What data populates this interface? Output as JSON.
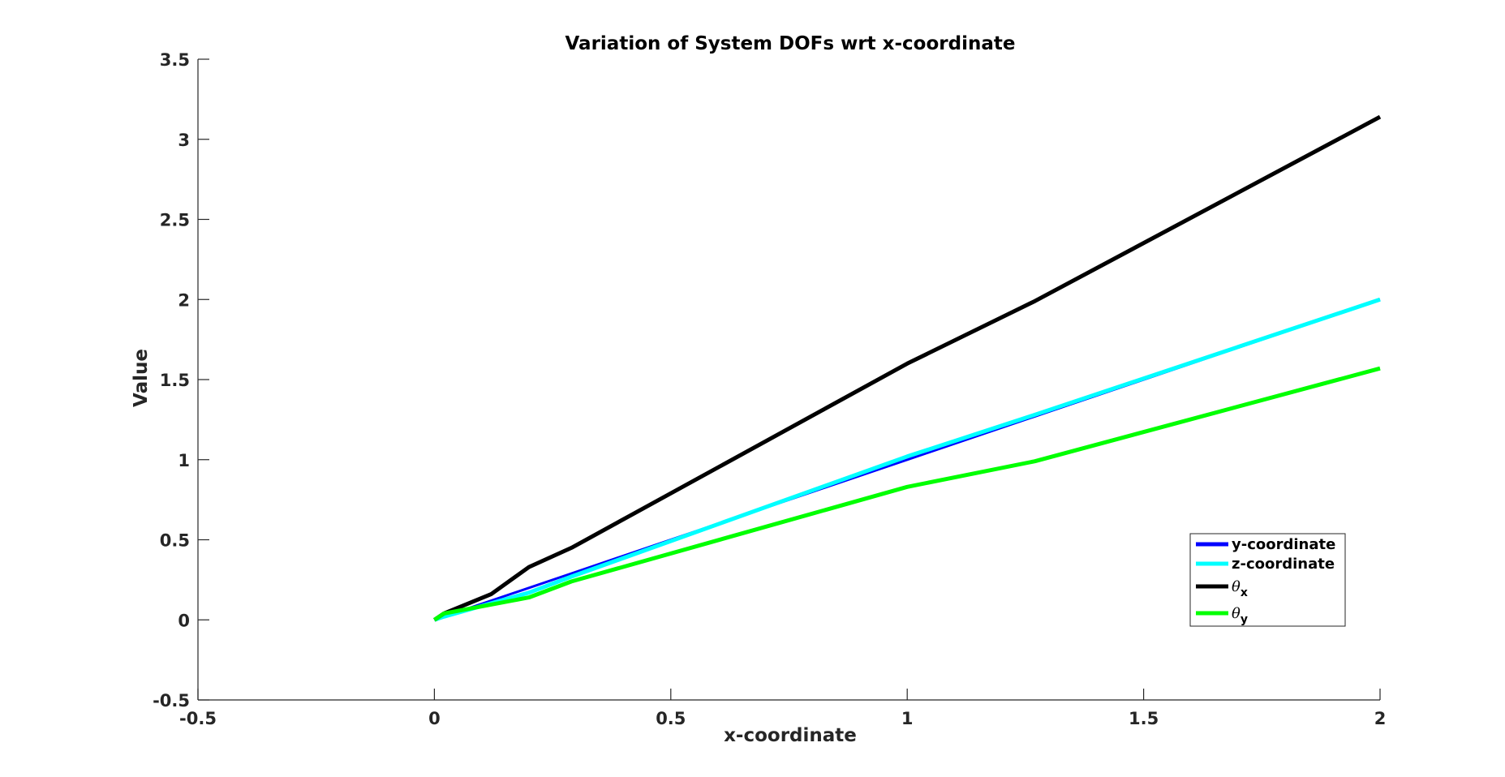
{
  "chart_data": {
    "type": "line",
    "title": "Variation of System DOFs wrt x-coordinate",
    "xlabel": "x-coordinate",
    "ylabel": "Value",
    "xlim": [
      -0.5,
      2
    ],
    "ylim": [
      -0.5,
      3.5
    ],
    "xticks": [
      -0.5,
      0,
      0.5,
      1,
      1.5,
      2
    ],
    "xtick_labels": [
      "-0.5",
      "0",
      "0.5",
      "1",
      "1.5",
      "2"
    ],
    "yticks": [
      -0.5,
      0,
      0.5,
      1,
      1.5,
      2,
      2.5,
      3,
      3.5
    ],
    "ytick_labels": [
      "-0.5",
      "0",
      "0.5",
      "1",
      "1.5",
      "2",
      "2.5",
      "3",
      "3.5"
    ],
    "grid": false,
    "legend_position": "bottom-right",
    "series": [
      {
        "name": "y-coordinate",
        "color": "#0000ff",
        "x": [
          0,
          0.02,
          0.2,
          0.29,
          1,
          1.27,
          2
        ],
        "y": [
          0,
          0.02,
          0.2,
          0.29,
          1,
          1.27,
          2
        ]
      },
      {
        "name": "z-coordinate",
        "color": "#00ffff",
        "x": [
          0,
          0.02,
          0.2,
          0.29,
          1,
          1.27,
          2
        ],
        "y": [
          0,
          0.02,
          0.17,
          0.27,
          1.02,
          1.28,
          2
        ]
      },
      {
        "name": "θx",
        "name_symbol": "θ",
        "name_subscript": "x",
        "color": "#000000",
        "x": [
          0,
          0.02,
          0.12,
          0.2,
          0.29,
          1,
          1.27,
          2
        ],
        "y": [
          0,
          0.04,
          0.16,
          0.33,
          0.45,
          1.6,
          1.99,
          3.14
        ]
      },
      {
        "name": "θy",
        "name_symbol": "θ",
        "name_subscript": "y",
        "color": "#00ff00",
        "x": [
          0,
          0.02,
          0.2,
          0.29,
          1,
          1.27,
          2
        ],
        "y": [
          0,
          0.04,
          0.14,
          0.24,
          0.83,
          0.99,
          1.57
        ]
      }
    ]
  }
}
